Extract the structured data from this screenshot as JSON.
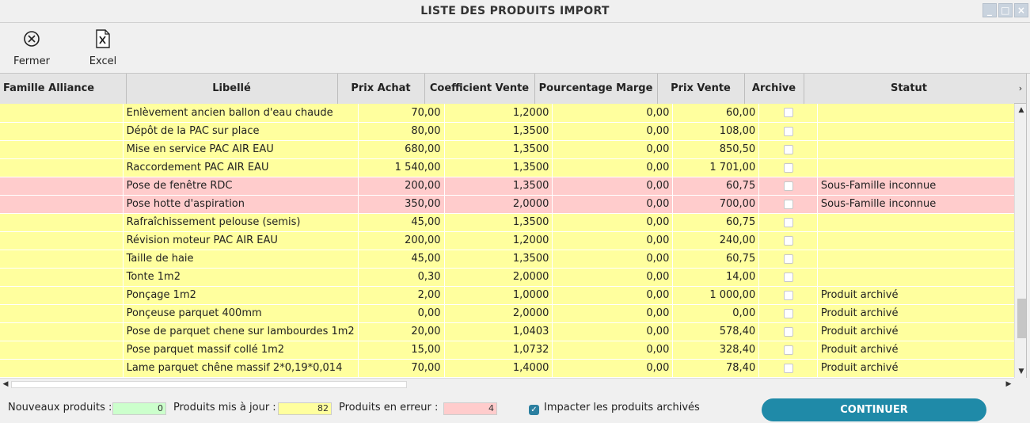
{
  "window": {
    "title": "LISTE DES PRODUITS IMPORT",
    "controls": [
      "_",
      "□",
      "×"
    ]
  },
  "toolbar": {
    "close_icon": "circle-x-icon",
    "close_label": "Fermer",
    "excel_icon": "excel-file-icon",
    "excel_label": "Excel"
  },
  "table": {
    "columns": [
      "Famille Alliance",
      "Libellé",
      "Prix Achat",
      "Coefficient Vente",
      "Pourcentage Marge",
      "Prix Vente",
      "Archive",
      "Statut"
    ],
    "rows": [
      {
        "state": "update",
        "famille": "",
        "libelle": "Enlèvement ancien ballon d'eau chaude",
        "prix_achat": "70,00",
        "coef": "1,2000",
        "marge": "0,00",
        "prix_vente": "60,00",
        "archive": false,
        "statut": ""
      },
      {
        "state": "update",
        "famille": "",
        "libelle": "Dépôt de la PAC sur place",
        "prix_achat": "80,00",
        "coef": "1,3500",
        "marge": "0,00",
        "prix_vente": "108,00",
        "archive": false,
        "statut": ""
      },
      {
        "state": "update",
        "famille": "",
        "libelle": "Mise en service PAC AIR EAU",
        "prix_achat": "680,00",
        "coef": "1,3500",
        "marge": "0,00",
        "prix_vente": "850,50",
        "archive": false,
        "statut": ""
      },
      {
        "state": "update",
        "famille": "",
        "libelle": "Raccordement PAC AIR EAU",
        "prix_achat": "1 540,00",
        "coef": "1,3500",
        "marge": "0,00",
        "prix_vente": "1 701,00",
        "archive": false,
        "statut": ""
      },
      {
        "state": "error",
        "famille": "",
        "libelle": "Pose de fenêtre RDC",
        "prix_achat": "200,00",
        "coef": "1,3500",
        "marge": "0,00",
        "prix_vente": "60,75",
        "archive": false,
        "statut": "Sous-Famille inconnue"
      },
      {
        "state": "error",
        "famille": "",
        "libelle": "Pose hotte d'aspiration",
        "prix_achat": "350,00",
        "coef": "2,0000",
        "marge": "0,00",
        "prix_vente": "700,00",
        "archive": false,
        "statut": "Sous-Famille inconnue"
      },
      {
        "state": "update",
        "famille": "",
        "libelle": "Rafraîchissement pelouse (semis)",
        "prix_achat": "45,00",
        "coef": "1,3500",
        "marge": "0,00",
        "prix_vente": "60,75",
        "archive": false,
        "statut": ""
      },
      {
        "state": "update",
        "famille": "",
        "libelle": "Révision moteur PAC AIR EAU",
        "prix_achat": "200,00",
        "coef": "1,2000",
        "marge": "0,00",
        "prix_vente": "240,00",
        "archive": false,
        "statut": ""
      },
      {
        "state": "update",
        "famille": "",
        "libelle": "Taille de haie",
        "prix_achat": "45,00",
        "coef": "1,3500",
        "marge": "0,00",
        "prix_vente": "60,75",
        "archive": false,
        "statut": ""
      },
      {
        "state": "update",
        "famille": "",
        "libelle": "Tonte 1m2",
        "prix_achat": "0,30",
        "coef": "2,0000",
        "marge": "0,00",
        "prix_vente": "14,00",
        "archive": false,
        "statut": ""
      },
      {
        "state": "update",
        "famille": "",
        "libelle": "Ponçage 1m2",
        "prix_achat": "2,00",
        "coef": "1,0000",
        "marge": "0,00",
        "prix_vente": "1 000,00",
        "archive": false,
        "statut": "Produit archivé"
      },
      {
        "state": "update",
        "famille": "",
        "libelle": "Ponçeuse parquet 400mm",
        "prix_achat": "0,00",
        "coef": "2,0000",
        "marge": "0,00",
        "prix_vente": "0,00",
        "archive": false,
        "statut": "Produit archivé"
      },
      {
        "state": "update",
        "famille": "",
        "libelle": "Pose de parquet chene sur lambourdes 1m2",
        "prix_achat": "20,00",
        "coef": "1,0403",
        "marge": "0,00",
        "prix_vente": "578,40",
        "archive": false,
        "statut": "Produit archivé"
      },
      {
        "state": "update",
        "famille": "",
        "libelle": "Pose parquet massif collé 1m2",
        "prix_achat": "15,00",
        "coef": "1,0732",
        "marge": "0,00",
        "prix_vente": "328,40",
        "archive": false,
        "statut": "Produit archivé"
      },
      {
        "state": "update",
        "famille": "",
        "libelle": "Lame parquet chêne massif 2*0,19*0,014",
        "prix_achat": "70,00",
        "coef": "1,4000",
        "marge": "0,00",
        "prix_vente": "78,40",
        "archive": false,
        "statut": "Produit archivé"
      }
    ]
  },
  "footer": {
    "new_label": "Nouveaux produits :",
    "new_count": "0",
    "updated_label": "Produits mis à jour :",
    "updated_count": "82",
    "error_label": "Produits en erreur :",
    "error_count": "4",
    "impact_label": "Impacter les produits archivés",
    "impact_checked": true,
    "continue_label": "CONTINUER"
  },
  "colors": {
    "updated_row": "#ffff9e",
    "error_row": "#ffcccc",
    "new_box": "#ccffcc",
    "accent": "#1f8aa8"
  }
}
